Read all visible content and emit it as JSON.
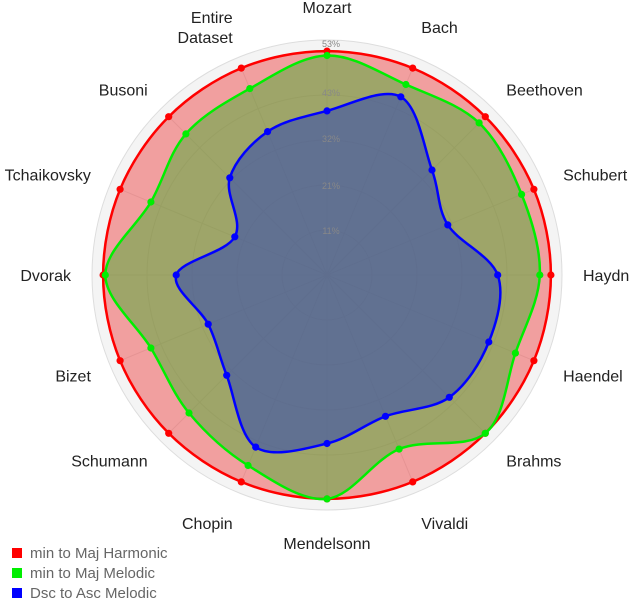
{
  "chart_data": {
    "type": "radar",
    "categories": [
      "Mozart",
      "Bach",
      "Beethoven",
      "Schubert",
      "Haydn",
      "Haendel",
      "Brahms",
      "Vivaldi",
      "Mendelsonn",
      "Chopin",
      "Schumann",
      "Bizet",
      "Dvorak",
      "Tchaikovsky",
      "Busoni",
      "Entire Dataset"
    ],
    "category_lines": {
      "Entire Dataset": [
        "Entire",
        "Dataset"
      ]
    },
    "ticks": [
      "11%",
      "21%",
      "32%",
      "43%",
      "53%"
    ],
    "rlim": [
      0,
      53
    ],
    "grid": true,
    "legend_position": "bottom-left",
    "series": [
      {
        "name": "min to Maj Harmonic",
        "color": "#ff0000",
        "fill": "rgba(255,40,40,0.38)",
        "values": [
          50.5,
          50.5,
          50.5,
          50.5,
          50.5,
          50.5,
          50.5,
          50.5,
          50.5,
          50.5,
          50.5,
          50.5,
          50.5,
          50.5,
          50.5,
          50.5
        ]
      },
      {
        "name": "min to Maj Melodic",
        "color": "#00ee00",
        "fill": "rgba(90,170,60,0.55)",
        "values": [
          49.5,
          46.5,
          48.5,
          47.5,
          48.0,
          46.0,
          50.5,
          42.5,
          50.5,
          46.5,
          44.0,
          43.0,
          50.0,
          43.0,
          45.0,
          45.5
        ]
      },
      {
        "name": "Dsc to Asc Melodic",
        "color": "#0000ff",
        "fill": "rgba(60,80,170,0.62)",
        "values": [
          37.0,
          43.5,
          33.5,
          29.5,
          38.5,
          39.5,
          39.0,
          34.5,
          38.0,
          42.0,
          32.0,
          29.0,
          34.0,
          22.5,
          31.0,
          35.0
        ]
      }
    ]
  }
}
